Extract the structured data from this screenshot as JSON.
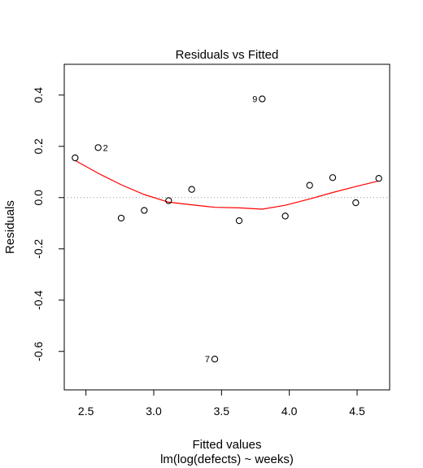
{
  "chart_data": {
    "type": "scatter",
    "title": "Residuals vs Fitted",
    "xlabel": "Fitted values",
    "sublabel": "lm(log(defects) ~ weeks)",
    "ylabel": "Residuals",
    "xlim": [
      2.34,
      4.74
    ],
    "ylim": [
      -0.75,
      0.52
    ],
    "x_ticks": [
      2.5,
      3.0,
      3.5,
      4.0,
      4.5
    ],
    "x_tick_labels": [
      "2.5",
      "3.0",
      "3.5",
      "4.0",
      "4.5"
    ],
    "y_ticks": [
      0.4,
      0.2,
      0.0,
      -0.2,
      -0.4,
      -0.6
    ],
    "y_tick_labels": [
      "0.4",
      "0.2",
      "0.0",
      "-0.2",
      "-0.4",
      "-0.6"
    ],
    "zero_line": 0.0,
    "points": [
      {
        "x": 2.42,
        "y": 0.155,
        "label": ""
      },
      {
        "x": 2.59,
        "y": 0.195,
        "label": "2"
      },
      {
        "x": 2.76,
        "y": -0.08,
        "label": ""
      },
      {
        "x": 2.93,
        "y": -0.05,
        "label": ""
      },
      {
        "x": 3.11,
        "y": -0.012,
        "label": ""
      },
      {
        "x": 3.28,
        "y": 0.032,
        "label": ""
      },
      {
        "x": 3.45,
        "y": -0.63,
        "label": "7"
      },
      {
        "x": 3.63,
        "y": -0.09,
        "label": ""
      },
      {
        "x": 3.8,
        "y": 0.385,
        "label": "9"
      },
      {
        "x": 3.97,
        "y": -0.072,
        "label": ""
      },
      {
        "x": 4.15,
        "y": 0.048,
        "label": ""
      },
      {
        "x": 4.32,
        "y": 0.078,
        "label": ""
      },
      {
        "x": 4.49,
        "y": -0.02,
        "label": ""
      },
      {
        "x": 4.66,
        "y": 0.075,
        "label": ""
      }
    ],
    "smooth": {
      "color": "#ff0000",
      "x": [
        2.42,
        2.59,
        2.76,
        2.93,
        3.11,
        3.28,
        3.45,
        3.63,
        3.8,
        3.97,
        4.15,
        4.32,
        4.49,
        4.66
      ],
      "y": [
        0.145,
        0.095,
        0.05,
        0.012,
        -0.018,
        -0.028,
        -0.038,
        -0.04,
        -0.045,
        -0.03,
        -0.005,
        0.02,
        0.043,
        0.065
      ]
    },
    "grid": false
  }
}
